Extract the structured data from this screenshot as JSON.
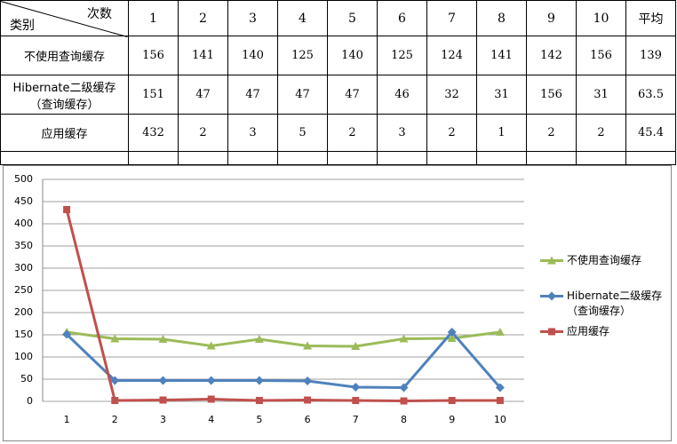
{
  "table": {
    "corner_top": "次数",
    "corner_bottom": "类别",
    "columns": [
      1,
      2,
      3,
      4,
      5,
      6,
      7,
      8,
      9,
      10,
      "平均"
    ],
    "rows": [
      {
        "label": "不使用查询缓存",
        "cells": [
          156,
          141,
          140,
          125,
          140,
          125,
          124,
          141,
          142,
          156,
          139
        ]
      },
      {
        "label": "Hibernate二级缓存\n（查询缓存）",
        "cells": [
          151,
          47,
          47,
          47,
          47,
          46,
          32,
          31,
          156,
          31,
          63.5
        ]
      },
      {
        "label": "应用缓存",
        "cells": [
          432,
          2,
          3,
          5,
          2,
          3,
          2,
          1,
          2,
          2,
          45.4
        ]
      }
    ]
  },
  "chart_data": {
    "type": "line",
    "categories": [
      1,
      2,
      3,
      4,
      5,
      6,
      7,
      8,
      9,
      10
    ],
    "series": [
      {
        "name": "不使用查询缓存",
        "color": "#9bbb59",
        "marker": "triangle",
        "values": [
          156,
          141,
          140,
          125,
          140,
          125,
          124,
          141,
          142,
          156
        ]
      },
      {
        "name": "Hibernate二级缓存\n（查询缓存）",
        "color": "#4f81bd",
        "marker": "diamond",
        "values": [
          151,
          47,
          47,
          47,
          47,
          46,
          32,
          31,
          156,
          31
        ]
      },
      {
        "name": "应用缓存",
        "color": "#c0504d",
        "marker": "square",
        "values": [
          432,
          2,
          3,
          5,
          2,
          3,
          2,
          1,
          2,
          2
        ]
      }
    ],
    "ylim": [
      0,
      500
    ],
    "yticks": [
      0,
      50,
      100,
      150,
      200,
      250,
      300,
      350,
      400,
      450,
      500
    ],
    "grid": true,
    "legend": "right"
  }
}
